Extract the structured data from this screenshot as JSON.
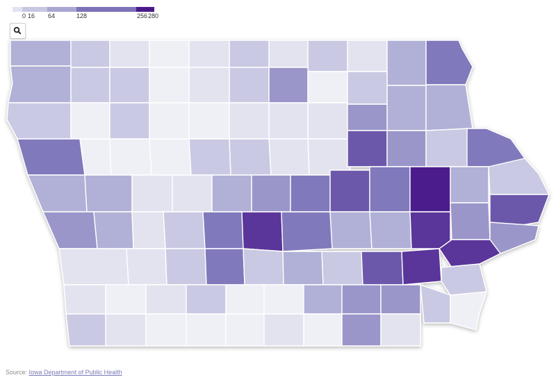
{
  "legend": {
    "ticks": [
      {
        "label": "0",
        "value": 0
      },
      {
        "label": "16",
        "value": 16
      },
      {
        "label": "64",
        "value": 64
      },
      {
        "label": "128",
        "value": 128
      },
      {
        "label": "256",
        "value": 256
      },
      {
        "label": "280",
        "value": 280
      }
    ],
    "colors": [
      "#e3e3f0",
      "#c7c7e2",
      "#a9a6d2",
      "#7d72b8",
      "#4a1a8a"
    ]
  },
  "zoom": {
    "icon": "search-icon"
  },
  "source": {
    "prefix": "Source: ",
    "link": "Iowa Department of Public Health"
  },
  "map": {
    "stroke": "#ffffff",
    "levels": {
      "0": "#efeff6",
      "1": "#e3e3f0",
      "2": "#c9c9e3",
      "3": "#b1b0d6",
      "4": "#9a96c9",
      "5": "#8079bb",
      "6": "#6c58aa",
      "7": "#5a349a",
      "8": "#4c1a8c"
    },
    "counties": [
      {
        "l": 3
      },
      {
        "l": 2
      },
      {
        "l": 1
      },
      {
        "l": 0
      },
      {
        "l": 1
      },
      {
        "l": 2
      },
      {
        "l": 1
      },
      {
        "l": 2
      },
      {
        "l": 1
      },
      {
        "l": 3
      },
      {
        "l": 5
      },
      {
        "l": 3
      },
      {
        "l": 2
      },
      {
        "l": 2
      },
      {
        "l": 0
      },
      {
        "l": 1
      },
      {
        "l": 2
      },
      {
        "l": 4
      },
      {
        "l": 0
      },
      {
        "l": 2
      },
      {
        "l": 3
      },
      {
        "l": 3
      },
      {
        "l": 2
      },
      {
        "l": 0
      },
      {
        "l": 2
      },
      {
        "l": 0
      },
      {
        "l": 0
      },
      {
        "l": 1
      },
      {
        "l": 1
      },
      {
        "l": 1
      },
      {
        "l": 4
      },
      {
        "l": 3
      },
      {
        "l": 3
      },
      {
        "l": 5
      },
      {
        "l": 0
      },
      {
        "l": 0
      },
      {
        "l": 0
      },
      {
        "l": 2
      },
      {
        "l": 2
      },
      {
        "l": 1
      },
      {
        "l": 1
      },
      {
        "l": 6
      },
      {
        "l": 4
      },
      {
        "l": 2
      },
      {
        "l": 5
      },
      {
        "l": 3
      },
      {
        "l": 3
      },
      {
        "l": 1
      },
      {
        "l": 1
      },
      {
        "l": 3
      },
      {
        "l": 4
      },
      {
        "l": 5
      },
      {
        "l": 6
      },
      {
        "l": 5
      },
      {
        "l": 8
      },
      {
        "l": 3
      },
      {
        "l": 2
      },
      {
        "l": 4
      },
      {
        "l": 3
      },
      {
        "l": 1
      },
      {
        "l": 2
      },
      {
        "l": 5
      },
      {
        "l": 7
      },
      {
        "l": 5
      },
      {
        "l": 3
      },
      {
        "l": 3
      },
      {
        "l": 7
      },
      {
        "l": 4
      },
      {
        "l": 6
      },
      {
        "l": 4
      },
      {
        "l": 1
      },
      {
        "l": 1
      },
      {
        "l": 2
      },
      {
        "l": 5
      },
      {
        "l": 2
      },
      {
        "l": 3
      },
      {
        "l": 2
      },
      {
        "l": 6
      },
      {
        "l": 7
      },
      {
        "l": 7
      },
      {
        "l": 2
      },
      {
        "l": 1
      },
      {
        "l": 0
      },
      {
        "l": 1
      },
      {
        "l": 2
      },
      {
        "l": 0
      },
      {
        "l": 0
      },
      {
        "l": 3
      },
      {
        "l": 4
      },
      {
        "l": 4
      },
      {
        "l": 2
      },
      {
        "l": 0
      },
      {
        "l": 2
      },
      {
        "l": 1
      },
      {
        "l": 0
      },
      {
        "l": 0
      },
      {
        "l": 0
      },
      {
        "l": 1
      },
      {
        "l": 0
      },
      {
        "l": 4
      },
      {
        "l": 1
      }
    ]
  }
}
